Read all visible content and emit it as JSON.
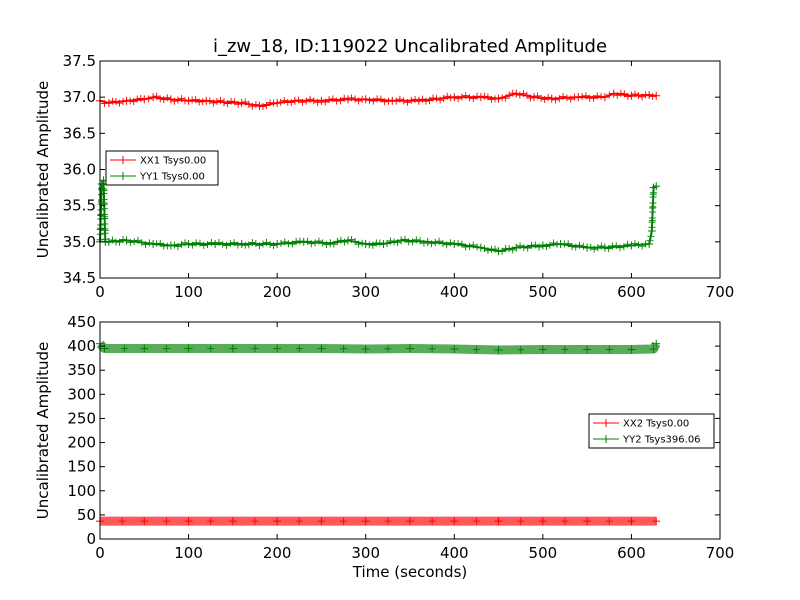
{
  "chart_data": [
    {
      "type": "line",
      "title": "i_zw_18, ID:119022 Uncalibrated Amplitude",
      "xlabel": "",
      "ylabel": "Uncalibrated Amplitude",
      "xlim": [
        0,
        700
      ],
      "ylim": [
        34.5,
        37.5
      ],
      "xticks": [
        "0",
        "100",
        "200",
        "300",
        "400",
        "500",
        "600",
        "700"
      ],
      "yticks": [
        "34.5",
        "35.0",
        "35.5",
        "36.0",
        "36.5",
        "37.0",
        "37.5"
      ],
      "legend_position": "center-left",
      "grid": false,
      "series": [
        {
          "name": "XX1 Tsys0.00",
          "color": "#ff0000",
          "marker": "plus",
          "x": [
            0,
            10,
            30,
            50,
            60,
            80,
            100,
            120,
            140,
            160,
            180,
            200,
            220,
            250,
            280,
            300,
            330,
            360,
            400,
            430,
            450,
            470,
            490,
            510,
            540,
            570,
            580,
            600,
            620,
            628
          ],
          "y": [
            36.95,
            36.92,
            36.95,
            36.97,
            37.0,
            36.97,
            36.95,
            36.95,
            36.93,
            36.92,
            36.88,
            36.92,
            36.95,
            36.95,
            36.97,
            36.97,
            36.95,
            36.95,
            37.0,
            37.0,
            36.98,
            37.05,
            37.0,
            36.98,
            37.0,
            37.0,
            37.05,
            37.02,
            37.03,
            37.02
          ]
        },
        {
          "name": "YY1 Tsys0.00",
          "color": "#008000",
          "marker": "plus",
          "x": [
            0,
            2,
            4,
            6,
            10,
            30,
            60,
            80,
            100,
            130,
            160,
            200,
            230,
            260,
            280,
            300,
            320,
            340,
            370,
            400,
            430,
            450,
            470,
            500,
            520,
            550,
            570,
            600,
            620,
            623,
            625,
            628
          ],
          "y": [
            35.0,
            35.8,
            35.85,
            35.0,
            35.0,
            35.02,
            34.97,
            34.95,
            34.97,
            34.97,
            34.97,
            34.97,
            35.0,
            34.98,
            35.02,
            34.97,
            34.97,
            35.02,
            35.0,
            34.97,
            34.92,
            34.87,
            34.92,
            34.95,
            34.97,
            34.92,
            34.92,
            34.95,
            34.97,
            35.15,
            35.75,
            35.77
          ]
        }
      ]
    },
    {
      "type": "line",
      "title": "",
      "xlabel": "Time (seconds)",
      "ylabel": "Uncalibrated Amplitude",
      "xlim": [
        0,
        700
      ],
      "ylim": [
        0,
        450
      ],
      "xticks": [
        "0",
        "100",
        "200",
        "300",
        "400",
        "500",
        "600",
        "700"
      ],
      "yticks": [
        "0",
        "50",
        "100",
        "150",
        "200",
        "250",
        "300",
        "350",
        "400",
        "450"
      ],
      "legend_position": "center-right",
      "grid": false,
      "series": [
        {
          "name": "XX2 Tsys0.00",
          "color": "#ff0000",
          "marker": "plus",
          "x": [
            0,
            50,
            100,
            150,
            200,
            250,
            300,
            350,
            400,
            450,
            500,
            550,
            600,
            628
          ],
          "y": [
            37,
            37,
            37,
            37,
            37,
            37,
            37,
            37,
            37,
            37,
            37,
            37,
            37,
            37
          ]
        },
        {
          "name": "YY2 Tsys396.06",
          "color": "#008000",
          "marker": "plus",
          "x": [
            0,
            5,
            50,
            100,
            150,
            200,
            250,
            300,
            350,
            400,
            450,
            500,
            550,
            600,
            625,
            628
          ],
          "y": [
            405,
            395,
            395,
            395,
            395,
            395,
            395,
            394,
            395,
            394,
            392,
            393,
            393,
            393,
            394,
            405
          ]
        }
      ]
    }
  ]
}
